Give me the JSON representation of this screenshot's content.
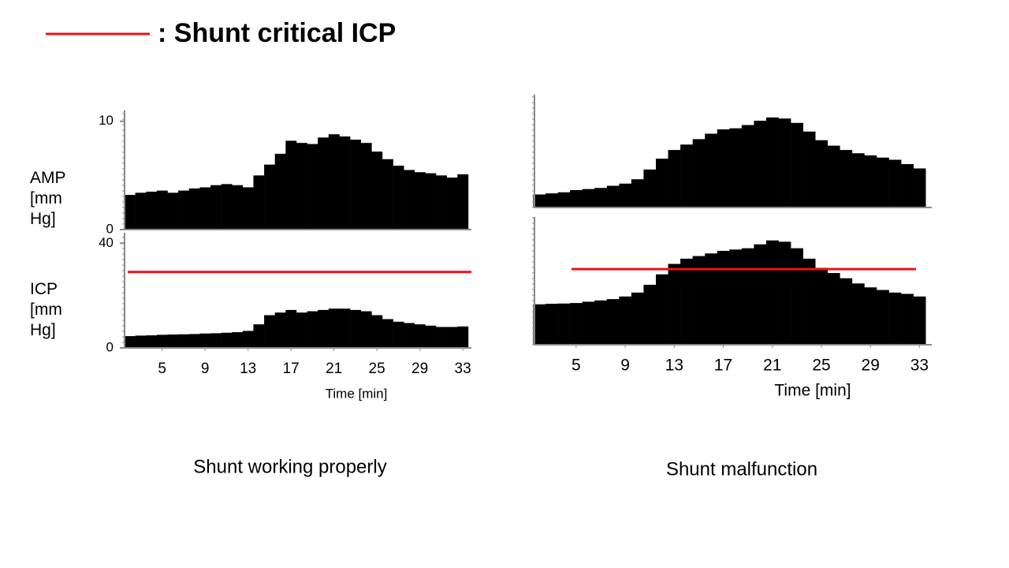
{
  "legend": {
    "label": ": Shunt critical ICP",
    "color": "#e8121a"
  },
  "chart_data": [
    {
      "type": "area",
      "panel": 0,
      "ylabel": "AMP [mm Hg]",
      "color": "#000000",
      "x": [
        2,
        3,
        4,
        5,
        6,
        7,
        8,
        9,
        10,
        11,
        12,
        13,
        14,
        15,
        16,
        17,
        18,
        19,
        20,
        21,
        22,
        23,
        24,
        25,
        26,
        27,
        28,
        29,
        30,
        31,
        32,
        33
      ],
      "values": [
        3.2,
        3.4,
        3.5,
        3.6,
        3.4,
        3.6,
        3.8,
        3.9,
        4.1,
        4.2,
        4.1,
        3.9,
        5.0,
        6.0,
        7.0,
        8.2,
        8.0,
        7.9,
        8.5,
        8.8,
        8.6,
        8.3,
        8.0,
        7.2,
        6.5,
        5.9,
        5.5,
        5.3,
        5.2,
        5.0,
        4.8,
        5.1
      ],
      "xlim": [
        1.5,
        33.8
      ],
      "ylim": [
        0,
        11
      ],
      "yticks": [
        0,
        10
      ]
    },
    {
      "type": "area",
      "panel": 0,
      "ylabel": "ICP [mm Hg]",
      "color": "#000000",
      "xlabel": "Time [min]",
      "caption": "Shunt working properly",
      "threshold": 29,
      "x": [
        2,
        3,
        4,
        5,
        6,
        7,
        8,
        9,
        10,
        11,
        12,
        13,
        14,
        15,
        16,
        17,
        18,
        19,
        20,
        21,
        22,
        23,
        24,
        25,
        26,
        27,
        28,
        29,
        30,
        31,
        32,
        33
      ],
      "values": [
        4.5,
        4.7,
        4.8,
        5.0,
        5.1,
        5.2,
        5.3,
        5.5,
        5.6,
        5.8,
        6.0,
        6.5,
        9.0,
        12.5,
        13.5,
        14.5,
        13.5,
        14.0,
        14.5,
        15.0,
        15.0,
        14.5,
        14.0,
        12.5,
        11.0,
        10.0,
        9.5,
        9.0,
        8.5,
        8.0,
        8.0,
        8.2
      ],
      "xlim": [
        1.5,
        33.8
      ],
      "ylim": [
        0,
        44
      ],
      "yticks": [
        0,
        40
      ],
      "xticks": [
        5,
        9,
        13,
        17,
        21,
        25,
        29,
        33
      ]
    },
    {
      "type": "area",
      "panel": 1,
      "color": "#000000",
      "x": [
        2,
        3,
        4,
        5,
        6,
        7,
        8,
        9,
        10,
        11,
        12,
        13,
        14,
        15,
        16,
        17,
        18,
        19,
        20,
        21,
        22,
        23,
        24,
        25,
        26,
        27,
        28,
        29,
        30,
        31,
        32,
        33
      ],
      "values": [
        1.2,
        1.3,
        1.4,
        1.6,
        1.7,
        1.8,
        2.0,
        2.2,
        2.6,
        3.5,
        4.5,
        5.3,
        5.8,
        6.3,
        6.8,
        7.2,
        7.3,
        7.6,
        8.0,
        8.3,
        8.2,
        7.8,
        7.0,
        6.2,
        5.7,
        5.3,
        5.0,
        4.8,
        4.6,
        4.4,
        4.0,
        3.6
      ],
      "xlim": [
        1.6,
        34
      ],
      "ylim": [
        0,
        10.4
      ]
    },
    {
      "type": "area",
      "panel": 1,
      "color": "#000000",
      "xlabel": "Time [min]",
      "caption": "Shunt malfunction",
      "threshold": 29,
      "x": [
        2,
        3,
        4,
        5,
        6,
        7,
        8,
        9,
        10,
        11,
        12,
        13,
        14,
        15,
        16,
        17,
        18,
        19,
        20,
        21,
        22,
        23,
        24,
        25,
        26,
        27,
        28,
        29,
        30,
        31,
        32,
        33
      ],
      "values": [
        15.5,
        15.7,
        15.8,
        16.0,
        16.5,
        17.0,
        17.5,
        18.5,
        20.0,
        23.0,
        27.0,
        31.0,
        33.0,
        34.0,
        35.0,
        36.0,
        36.5,
        37.0,
        38.5,
        40.0,
        39.5,
        37.0,
        33.0,
        29.5,
        27.5,
        25.5,
        23.5,
        22.0,
        21.0,
        20.0,
        19.5,
        18.5
      ],
      "xlim": [
        1.6,
        34
      ],
      "ylim": [
        0,
        49
      ],
      "xticks": [
        5,
        9,
        13,
        17,
        21,
        25,
        29,
        33
      ]
    }
  ]
}
